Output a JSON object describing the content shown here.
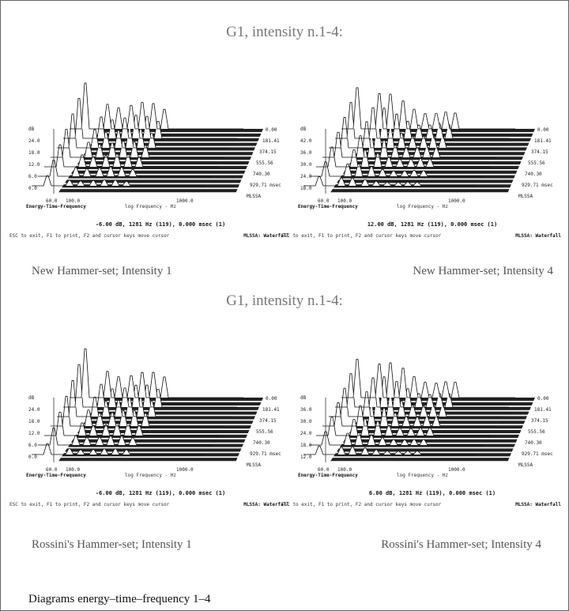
{
  "header": {
    "title": "G1, intensity n.1-4:",
    "subtitle": "G1, intensity n.1-4:"
  },
  "panels": [
    {
      "y_labels": [
        "dB",
        "24.0",
        "18.0",
        "12.0",
        "6.0",
        "0.0"
      ],
      "time_labels": [
        "0.00",
        "181.41",
        "374.15",
        "555.56",
        "740.30",
        "929.71 msec",
        "MLSSA"
      ],
      "x_labels": [
        "60.0",
        "100.0",
        "1000.0"
      ],
      "x_title": "Energy-Time-Frequency",
      "x_axis_title": "log Frequency - Hz",
      "status": "-6.00 dB, 1281 Hz (119), 0.000 msec (1)",
      "footer_left": "ESC to exit, F1 to print, F2 and cursor keys move cursor",
      "footer_right": "MLSSA: Waterfall",
      "caption": "New Hammer-set; Intensity 1"
    },
    {
      "y_labels": [
        "dB",
        "42.0",
        "36.0",
        "30.0",
        "24.0",
        "18.0"
      ],
      "time_labels": [
        "0.00",
        "181.41",
        "374.15",
        "555.56",
        "740.30",
        "929.71 msec",
        "MLSSA"
      ],
      "x_labels": [
        "60.0",
        "100.0",
        "1000.0"
      ],
      "x_title": "Energy-Time-Frequency",
      "x_axis_title": "log Frequency - Hz",
      "status": "12.00 dB, 1281 Hz (119), 0.000 msec (1)",
      "footer_left": "ESC to exit, F1 to print, F2 and cursor keys move cursor",
      "footer_right": "MLSSA: Waterfall",
      "caption": "New Hammer-set; Intensity 4"
    },
    {
      "y_labels": [
        "dB",
        "24.0",
        "18.0",
        "12.0",
        "6.0",
        "0.0"
      ],
      "time_labels": [
        "0.00",
        "181.41",
        "374.15",
        "555.56",
        "740.30",
        "929.71 msec",
        "MLSSA"
      ],
      "x_labels": [
        "60.0",
        "100.0",
        "1000.0"
      ],
      "x_title": "Energy-Time-Frequency",
      "x_axis_title": "log Frequency - Hz",
      "status": "-6.00 dB, 1281 Hz (119), 0.000 msec (1)",
      "footer_left": "ESC to exit, F1 to print, F2 and cursor keys move cursor",
      "footer_right": "MLSSA: Waterfall",
      "caption": "Rossini's Hammer-set; Intensity 1"
    },
    {
      "y_labels": [
        "dB",
        "36.0",
        "30.0",
        "24.0",
        "18.0",
        "12.0"
      ],
      "time_labels": [
        "0.00",
        "181.41",
        "374.15",
        "555.56",
        "740.30",
        "929.71 msec",
        "MLSSA"
      ],
      "x_labels": [
        "60.0",
        "100.0",
        "1000.0"
      ],
      "x_title": "Energy-Time-Frequency",
      "x_axis_title": "log Frequency - Hz",
      "status": "6.00 dB, 1281 Hz (119), 0.000 msec (1)",
      "footer_left": "ESC to exit, F1 to print, F2 and cursor keys move cursor",
      "footer_right": "MLSSA: Waterfall",
      "caption": "Rossini's Hammer-set; Intensity 4"
    }
  ],
  "footer": {
    "caption": "Diagrams energy–time–frequency 1–4"
  }
}
